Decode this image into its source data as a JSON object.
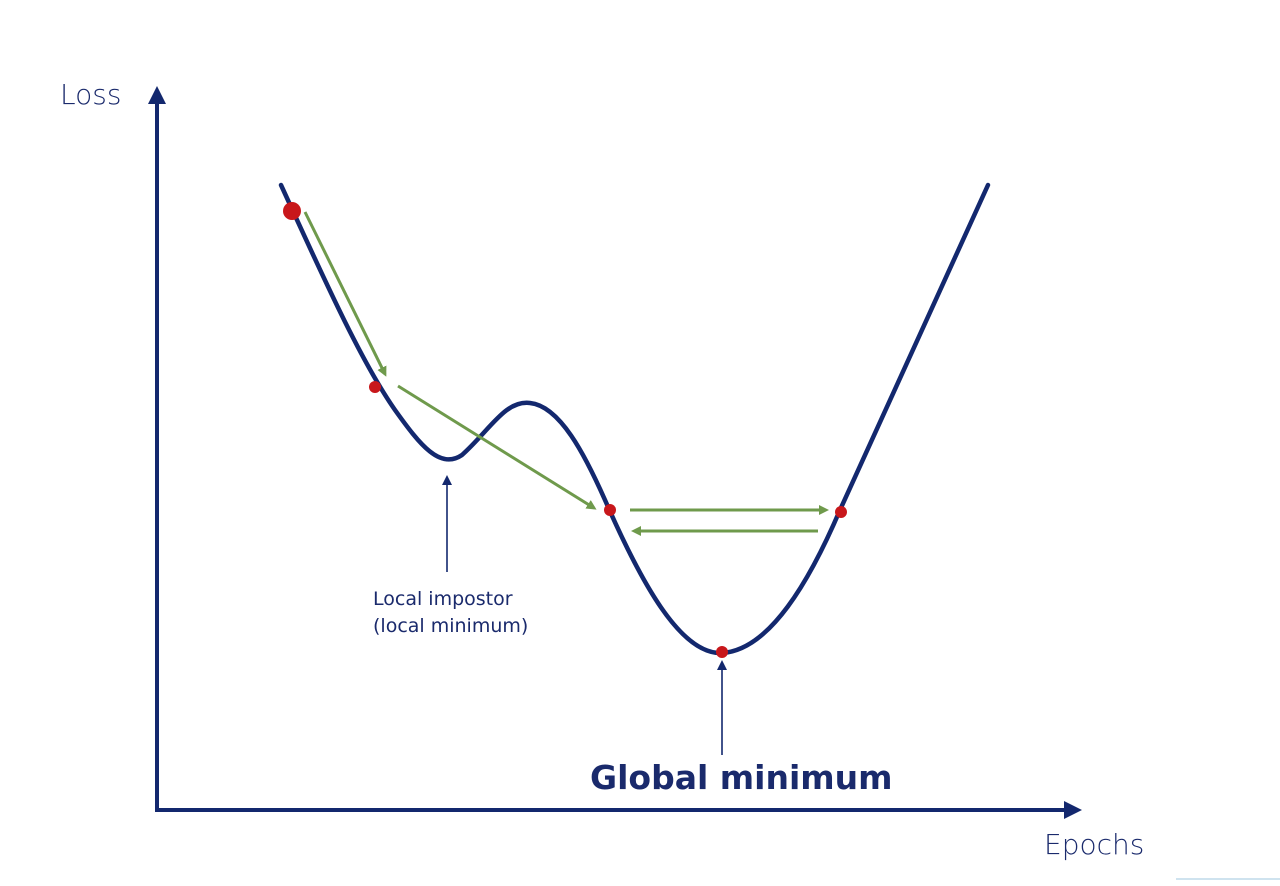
{
  "diagram": {
    "y_axis_label": "Loss",
    "x_axis_label": "Epochs",
    "annotations": {
      "local_line1": "Local impostor",
      "local_line2": "(local minimum)",
      "global": "Global minimum"
    },
    "colors": {
      "curve": "#13286e",
      "axis": "#13286e",
      "step_arrow": "#6f9a4c",
      "point": "#c8171b",
      "text": "#1a2a6c"
    }
  }
}
